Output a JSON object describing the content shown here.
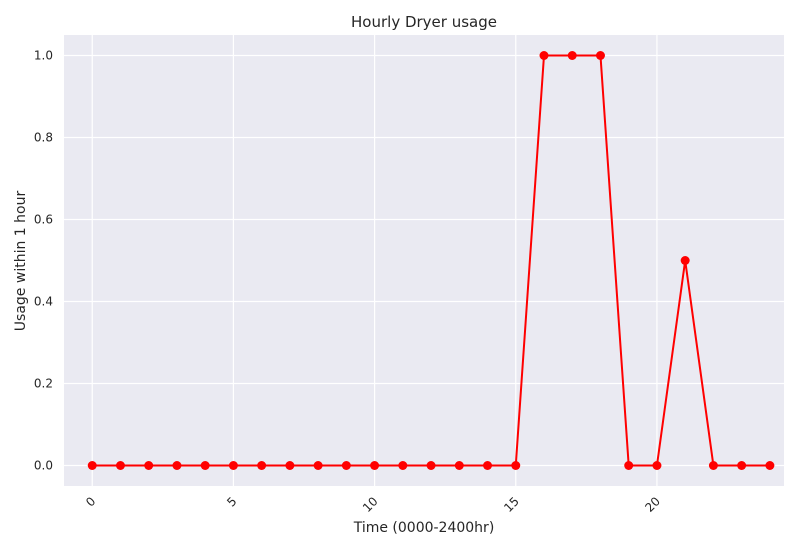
{
  "chart_data": {
    "type": "line",
    "title": "Hourly Dryer usage",
    "xlabel": "Time (0000-2400hr)",
    "ylabel": "Usage within 1 hour",
    "x": [
      0,
      1,
      2,
      3,
      4,
      5,
      6,
      7,
      8,
      9,
      10,
      11,
      12,
      13,
      14,
      15,
      16,
      17,
      18,
      19,
      20,
      21,
      22,
      23,
      24
    ],
    "series": [
      {
        "values": [
          0,
          0,
          0,
          0,
          0,
          0,
          0,
          0,
          0,
          0,
          0,
          0,
          0,
          0,
          0,
          0,
          1,
          1,
          1,
          0,
          0,
          0.5,
          0,
          0,
          0
        ],
        "color": "#ff0000"
      }
    ],
    "xlim": [
      -1,
      24.5
    ],
    "ylim": [
      -0.05,
      1.05
    ],
    "xticks": [
      "0",
      "5",
      "10",
      "15",
      "20"
    ],
    "yticks": [
      "0.0",
      "0.2",
      "0.4",
      "0.6",
      "0.8",
      "1.0"
    ],
    "grid": true,
    "background": "#eaeaf2",
    "gridColor": "#ffffff"
  }
}
